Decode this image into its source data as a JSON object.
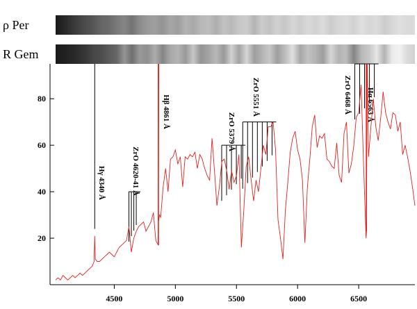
{
  "chart_data": {
    "type": "line",
    "title": "",
    "xlabel": "",
    "ylabel": "",
    "xlim": [
      4020,
      6960
    ],
    "ylim": [
      0,
      95
    ],
    "x_ticks": [
      4500,
      5000,
      5500,
      6000,
      6500
    ],
    "y_ticks": [
      20,
      40,
      60,
      80
    ],
    "grid": false,
    "legend": "none",
    "colors": {
      "series": "#e8201e",
      "marker_h": "#e8201e",
      "marker_zro": "#000000",
      "axis": "#000000"
    },
    "strips": [
      {
        "name": "ρ Per",
        "profile": [
          0.1,
          0.15,
          0.2,
          0.26,
          0.3,
          0.34,
          0.4,
          0.42,
          0.48,
          0.52,
          0.45,
          0.55,
          0.6,
          0.62,
          0.58,
          0.65,
          0.62,
          0.7,
          0.66,
          0.72,
          0.74,
          0.68,
          0.76,
          0.72,
          0.78,
          0.8,
          0.7,
          0.8,
          0.76,
          0.82,
          0.78,
          0.84,
          0.8,
          0.85,
          0.82,
          0.86,
          0.8,
          0.84,
          0.86,
          0.82,
          0.88,
          0.84,
          0.86,
          0.8,
          0.84,
          0.88,
          0.85,
          0.86
        ]
      },
      {
        "name": "R Gem",
        "profile": [
          0.1,
          0.12,
          0.15,
          0.18,
          0.22,
          0.28,
          0.3,
          0.36,
          0.4,
          0.58,
          0.44,
          0.6,
          0.56,
          0.68,
          0.52,
          0.66,
          0.7,
          0.6,
          0.78,
          0.58,
          0.64,
          0.72,
          0.6,
          0.82,
          0.64,
          0.84,
          0.62,
          0.7,
          0.78,
          0.62,
          0.74,
          0.88,
          0.66,
          0.76,
          0.7,
          0.62,
          0.84,
          0.7,
          0.74,
          0.52,
          0.72,
          0.78,
          0.9,
          0.7,
          0.92,
          0.95,
          0.86,
          0.82
        ]
      }
    ],
    "series": [
      {
        "x": [
          4020,
          4040,
          4060,
          4080,
          4100,
          4120,
          4140,
          4160,
          4180,
          4200,
          4220,
          4240,
          4260,
          4280,
          4300,
          4320,
          4335,
          4340,
          4345,
          4360,
          4380,
          4400,
          4420,
          4440,
          4460,
          4480,
          4500,
          4520,
          4540,
          4560,
          4580,
          4600,
          4620,
          4640,
          4660,
          4680,
          4700,
          4720,
          4740,
          4760,
          4780,
          4800,
          4820,
          4840,
          4860,
          4865,
          4861,
          4870,
          4880,
          4900,
          4920,
          4940,
          4960,
          4980,
          5000,
          5020,
          5040,
          5060,
          5080,
          5100,
          5120,
          5140,
          5160,
          5180,
          5200,
          5220,
          5240,
          5260,
          5280,
          5300,
          5320,
          5340,
          5360,
          5380,
          5400,
          5420,
          5440,
          5460,
          5480,
          5500,
          5520,
          5540,
          5560,
          5580,
          5600,
          5620,
          5640,
          5660,
          5680,
          5700,
          5720,
          5740,
          5760,
          5780,
          5800,
          5820,
          5840,
          5860,
          5880,
          5900,
          5920,
          5940,
          5960,
          5980,
          6000,
          6020,
          6040,
          6060,
          6080,
          6100,
          6120,
          6140,
          6160,
          6180,
          6200,
          6220,
          6240,
          6260,
          6280,
          6300,
          6320,
          6340,
          6360,
          6380,
          6400,
          6420,
          6440,
          6460,
          6480,
          6500,
          6520,
          6540,
          6560,
          6563,
          6570,
          6580,
          6600,
          6620,
          6640,
          6660,
          6680,
          6700,
          6720,
          6740,
          6760,
          6780,
          6800,
          6820,
          6840,
          6860,
          6880,
          6900,
          6920,
          6940,
          6960
        ],
        "y": [
          2,
          3,
          2,
          4,
          3,
          2,
          3,
          4,
          3,
          4,
          5,
          4,
          5,
          6,
          7,
          8,
          10,
          21,
          11,
          10,
          10,
          11,
          12,
          13,
          14,
          13,
          12,
          14,
          16,
          17,
          18,
          19,
          25,
          14,
          20,
          23,
          25,
          26,
          27,
          23,
          25,
          27,
          31,
          19,
          17,
          95,
          27,
          30,
          29,
          42,
          50,
          40,
          54,
          55,
          58,
          52,
          55,
          42,
          55,
          54,
          56,
          55,
          57,
          50,
          56,
          54,
          50,
          47,
          45,
          63,
          49,
          34,
          42,
          53,
          54,
          49,
          41,
          49,
          44,
          47,
          56,
          16,
          32,
          51,
          55,
          45,
          36,
          45,
          40,
          50,
          60,
          56,
          68,
          68,
          70,
          58,
          28,
          20,
          11,
          32,
          44,
          57,
          63,
          66,
          58,
          54,
          45,
          18,
          42,
          54,
          68,
          73,
          59,
          64,
          63,
          65,
          54,
          53,
          51,
          50,
          61,
          47,
          44,
          65,
          70,
          48,
          52,
          60,
          72,
          74,
          86,
          52,
          20,
          22,
          95,
          55,
          68,
          80,
          68,
          62,
          72,
          83,
          74,
          70,
          67,
          74,
          73,
          66,
          70,
          56,
          60,
          55,
          49,
          42,
          34
        ]
      }
    ],
    "annotations": [
      {
        "label": "Hγ 4340 Å",
        "x": 4340,
        "kind": "H",
        "y_top": 95,
        "y_bottom": 24
      },
      {
        "label": "ZrO 4620-41 Å",
        "x": 4620,
        "kind": "ZrO",
        "y_top": 40,
        "offsets": [
          0,
          20,
          40,
          60
        ]
      },
      {
        "label": "Hβ 4861 Å",
        "x": 4861,
        "kind": "H",
        "y_top": 95,
        "y_bottom": 17
      },
      {
        "label": "ZrO 5379 Å",
        "x": 5379,
        "kind": "ZrO",
        "y_top": 60,
        "offsets": [
          0,
          40,
          80,
          120,
          160
        ]
      },
      {
        "label": "ZrO 5551 Å",
        "x": 5551,
        "kind": "ZrO",
        "y_top": 70,
        "offsets": [
          0,
          40,
          80,
          120,
          160,
          200,
          240
        ]
      },
      {
        "label": "ZrO 6468 Å",
        "x": 6468,
        "kind": "ZrO",
        "y_top": 95,
        "offsets": [
          0,
          40,
          80,
          120,
          160
        ]
      },
      {
        "label": "Hα 6563 Å",
        "x": 6563,
        "kind": "H",
        "y_top": 95,
        "y_bottom": 23
      }
    ]
  }
}
